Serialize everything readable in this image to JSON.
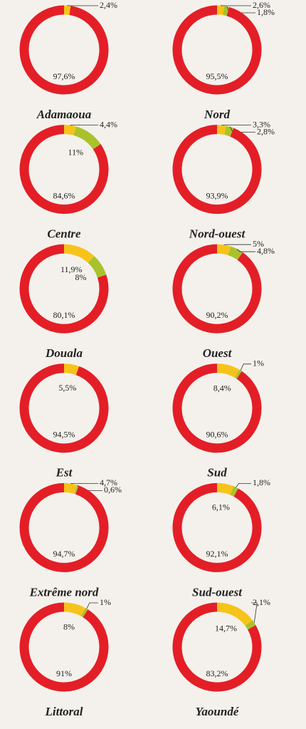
{
  "chart_data": [
    {
      "type": "pie",
      "title": "Adamaoua",
      "values": [
        2.4,
        97.6
      ],
      "value_labels": [
        "2,4%",
        "97,6%"
      ],
      "colors": [
        "#f7c31a",
        "#e41e26"
      ]
    },
    {
      "type": "pie",
      "title": "Nord",
      "values": [
        2.6,
        1.8,
        95.5
      ],
      "value_labels": [
        "2,6%",
        "1,8%",
        "95,5%"
      ],
      "colors": [
        "#f7c31a",
        "#a9c22c",
        "#e41e26"
      ]
    },
    {
      "type": "pie",
      "title": "Centre",
      "values": [
        4.4,
        11,
        84.6
      ],
      "value_labels": [
        "4,4%",
        "11%",
        "84,6%"
      ],
      "colors": [
        "#f7c31a",
        "#a9c22c",
        "#e41e26"
      ]
    },
    {
      "type": "pie",
      "title": "Nord-ouest",
      "values": [
        3.3,
        2.8,
        93.9
      ],
      "value_labels": [
        "3,3%",
        "2,8%",
        "93,9%"
      ],
      "colors": [
        "#f7c31a",
        "#a9c22c",
        "#e41e26"
      ]
    },
    {
      "type": "pie",
      "title": "Douala",
      "values": [
        11.9,
        8,
        80.1
      ],
      "value_labels": [
        "11,9%",
        "8%",
        "80,1%"
      ],
      "colors": [
        "#f7c31a",
        "#a9c22c",
        "#e41e26"
      ]
    },
    {
      "type": "pie",
      "title": "Ouest",
      "values": [
        5,
        4.8,
        90.2
      ],
      "value_labels": [
        "5%",
        "4,8%",
        "90,2%"
      ],
      "colors": [
        "#f7c31a",
        "#a9c22c",
        "#e41e26"
      ]
    },
    {
      "type": "pie",
      "title": "Est",
      "values": [
        5.5,
        94.5
      ],
      "value_labels": [
        "5,5%",
        "94,5%"
      ],
      "colors": [
        "#f7c31a",
        "#e41e26"
      ]
    },
    {
      "type": "pie",
      "title": "Sud",
      "values": [
        8.4,
        1,
        90.6
      ],
      "value_labels": [
        "8,4%",
        "1%",
        "90,6%"
      ],
      "colors": [
        "#f7c31a",
        "#a9c22c",
        "#e41e26"
      ]
    },
    {
      "type": "pie",
      "title": "Extrême nord",
      "values": [
        4.7,
        0.6,
        94.7
      ],
      "value_labels": [
        "4,7%",
        "0,6%",
        "94,7%"
      ],
      "colors": [
        "#f7c31a",
        "#a9c22c",
        "#e41e26"
      ]
    },
    {
      "type": "pie",
      "title": "Sud-ouest",
      "values": [
        6.1,
        1.8,
        92.1
      ],
      "value_labels": [
        "6,1%",
        "1,8%",
        "92,1%"
      ],
      "colors": [
        "#f7c31a",
        "#a9c22c",
        "#e41e26"
      ]
    },
    {
      "type": "pie",
      "title": "Littoral",
      "values": [
        8,
        1,
        91
      ],
      "value_labels": [
        "8%",
        "1%",
        "91%"
      ],
      "colors": [
        "#f7c31a",
        "#a9c22c",
        "#e41e26"
      ]
    },
    {
      "type": "pie",
      "title": "Yaoundé",
      "values": [
        14.7,
        2.1,
        83.2
      ],
      "value_labels": [
        "14,7%",
        "2,1%",
        "83,2%"
      ],
      "colors": [
        "#f7c31a",
        "#a9c22c",
        "#e41e26"
      ]
    }
  ]
}
